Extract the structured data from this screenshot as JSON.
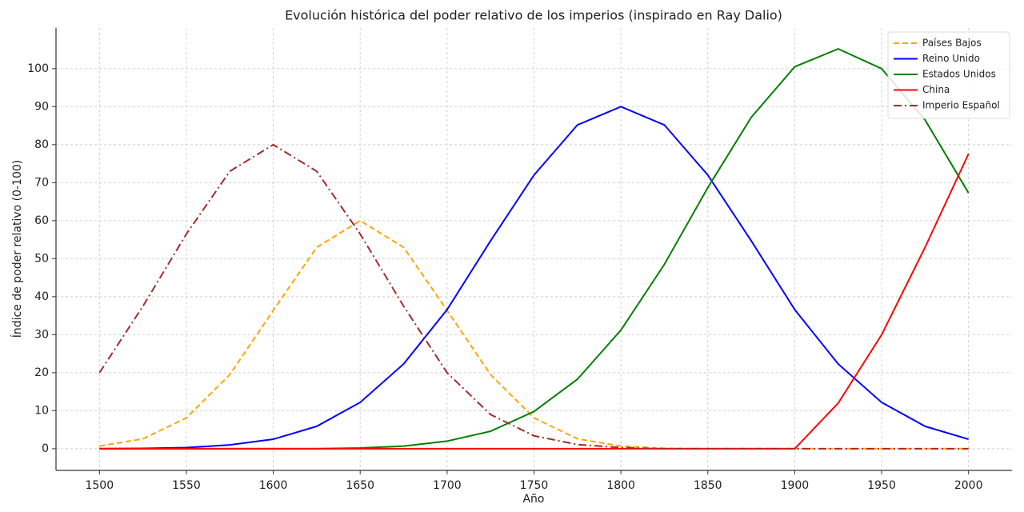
{
  "chart_data": {
    "type": "line",
    "title": "Evolución histórica del poder relativo de los imperios (inspirado en Ray Dalio)",
    "x_label": "Año",
    "y_label": "Índice de poder relativo (0-100)",
    "x": [
      1500,
      1525,
      1550,
      1575,
      1600,
      1625,
      1650,
      1675,
      1700,
      1725,
      1750,
      1775,
      1800,
      1825,
      1850,
      1875,
      1900,
      1925,
      1950,
      1975,
      2000
    ],
    "series": [
      {
        "name": "Países Bajos",
        "color": "#ffa500",
        "linestyle": "dashed",
        "values": [
          0.7,
          2.6,
          8.1,
          19.5,
          36.4,
          53,
          60,
          53,
          36.4,
          19.5,
          8.1,
          2.6,
          0.7,
          0.1,
          0,
          0,
          0,
          0,
          0,
          0,
          0
        ]
      },
      {
        "name": "Reino Unido",
        "color": "#0000ff",
        "linestyle": "solid",
        "values": [
          0,
          0.1,
          0.3,
          1.0,
          2.5,
          5.9,
          12.2,
          22.3,
          36.6,
          54.7,
          72,
          85.2,
          90,
          85.2,
          72,
          54.7,
          36.6,
          22.3,
          12.2,
          5.9,
          2.5
        ]
      },
      {
        "name": "Estados Unidos",
        "color": "#008000",
        "linestyle": "solid",
        "values": [
          0,
          0,
          0,
          0,
          0,
          0,
          0.2,
          0.7,
          2,
          4.6,
          9.8,
          18.3,
          31.2,
          48.5,
          68.7,
          87.2,
          100.5,
          105.2,
          100,
          86.5,
          67.3
        ]
      },
      {
        "name": "China",
        "color": "#ff0000",
        "linestyle": "solid",
        "values": [
          0,
          0,
          0,
          0,
          0,
          0,
          0,
          0,
          0,
          0,
          0,
          0,
          0,
          0,
          0,
          0,
          0,
          12,
          30,
          53,
          77.6
        ]
      },
      {
        "name": "Imperio Español",
        "color": "#a52a2a",
        "linestyle": "dashdot",
        "values": [
          20,
          37.5,
          56.5,
          73,
          80,
          73,
          56.5,
          37.5,
          20,
          9,
          3.4,
          1.1,
          0.3,
          0,
          0,
          0,
          0,
          0,
          0,
          0,
          0
        ]
      }
    ],
    "xlim": [
      1475,
      2025
    ],
    "xticks": [
      1500,
      1550,
      1600,
      1650,
      1700,
      1750,
      1800,
      1850,
      1900,
      1950,
      2000
    ],
    "ylim": [
      -5.7,
      110.7
    ],
    "yticks": [
      0,
      10,
      20,
      30,
      40,
      50,
      60,
      70,
      80,
      90,
      100
    ],
    "grid": true,
    "legend": "upper right"
  }
}
